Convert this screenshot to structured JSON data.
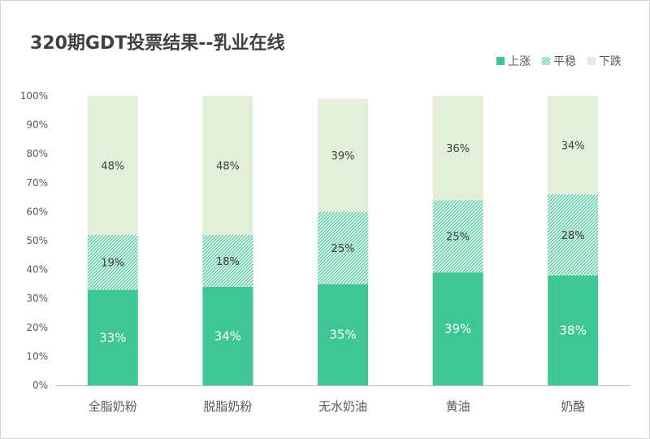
{
  "chart_data": {
    "type": "bar",
    "stacked": true,
    "title": "320期GDT投票结果--乳业在线",
    "categories": [
      "全脂奶粉",
      "脱脂奶粉",
      "无水奶油",
      "黄油",
      "奶酪"
    ],
    "series": [
      {
        "name": "上涨",
        "values": [
          33,
          34,
          35,
          39,
          38
        ],
        "labels": [
          "33%",
          "34%",
          "35%",
          "39%",
          "38%"
        ],
        "color": "#3ec695",
        "pattern": "solid"
      },
      {
        "name": "平稳",
        "values": [
          19,
          18,
          25,
          25,
          28
        ],
        "labels": [
          "19%",
          "18%",
          "25%",
          "25%",
          "28%"
        ],
        "color": "#3ec695",
        "pattern": "hatch"
      },
      {
        "name": "下跌",
        "values": [
          48,
          48,
          39,
          36,
          34
        ],
        "labels": [
          "48%",
          "48%",
          "39%",
          "36%",
          "34%"
        ],
        "color": "#e3efd9",
        "pattern": "solid"
      }
    ],
    "yaxis": {
      "ticks": [
        "0%",
        "10%",
        "20%",
        "30%",
        "40%",
        "50%",
        "60%",
        "70%",
        "80%",
        "90%",
        "100%"
      ],
      "ylim": [
        0,
        100
      ]
    },
    "legend_position": "top-right",
    "grid": false
  }
}
